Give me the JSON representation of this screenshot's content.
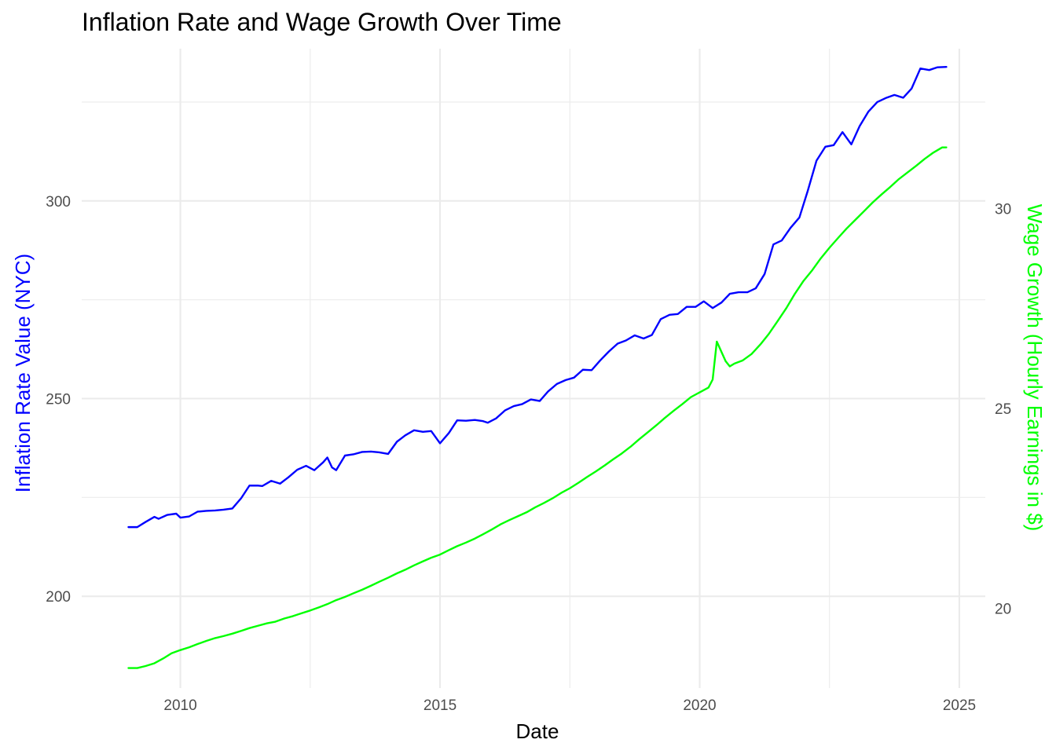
{
  "chart_data": {
    "type": "line",
    "title": "Inflation Rate and Wage Growth Over Time",
    "xlabel": "Date",
    "ylabel": "Inflation Rate Value (NYC)",
    "y2label": "Wage Growth (Hourly Earnings in $)",
    "xlim": [
      2008.1,
      2025.5
    ],
    "ylim": [
      176.8,
      338.5
    ],
    "y2lim": [
      18.0,
      34.0
    ],
    "x_ticks": [
      2010,
      2015,
      2020,
      2025
    ],
    "x_tick_labels": [
      "2010",
      "2015",
      "2020",
      "2025"
    ],
    "y_ticks": [
      200,
      250,
      300
    ],
    "y_tick_labels": [
      "200",
      "250",
      "300"
    ],
    "y2_ticks": [
      20,
      25,
      30
    ],
    "y2_tick_labels": [
      "20",
      "25",
      "30"
    ],
    "grid": true,
    "series": [
      {
        "axis": "left",
        "color": "#0000ff",
        "x": [
          2009.0,
          2009.17,
          2009.33,
          2009.5,
          2009.58,
          2009.75,
          2009.92,
          2010.0,
          2010.17,
          2010.33,
          2010.5,
          2010.67,
          2010.83,
          2011.0,
          2011.17,
          2011.33,
          2011.5,
          2011.58,
          2011.75,
          2011.92,
          2012.08,
          2012.25,
          2012.42,
          2012.58,
          2012.75,
          2012.83,
          2012.92,
          2013.0,
          2013.17,
          2013.33,
          2013.5,
          2013.67,
          2013.83,
          2014.0,
          2014.17,
          2014.33,
          2014.5,
          2014.67,
          2014.83,
          2015.0,
          2015.17,
          2015.33,
          2015.5,
          2015.67,
          2015.83,
          2015.92,
          2016.08,
          2016.25,
          2016.42,
          2016.58,
          2016.75,
          2016.92,
          2017.08,
          2017.25,
          2017.42,
          2017.58,
          2017.75,
          2017.92,
          2018.08,
          2018.25,
          2018.42,
          2018.58,
          2018.75,
          2018.92,
          2019.08,
          2019.25,
          2019.42,
          2019.58,
          2019.75,
          2019.92,
          2020.08,
          2020.25,
          2020.42,
          2020.58,
          2020.75,
          2020.92,
          2021.08,
          2021.25,
          2021.42,
          2021.58,
          2021.75,
          2021.92,
          2022.08,
          2022.25,
          2022.42,
          2022.58,
          2022.75,
          2022.92,
          2023.08,
          2023.25,
          2023.42,
          2023.58,
          2023.75,
          2023.92,
          2024.08,
          2024.25,
          2024.42,
          2024.58,
          2024.75
        ],
        "y": [
          217.5,
          217.5,
          218.8,
          220.1,
          219.6,
          220.6,
          220.9,
          219.9,
          220.2,
          221.4,
          221.6,
          221.7,
          221.9,
          222.2,
          224.8,
          228.0,
          228.0,
          227.9,
          229.2,
          228.5,
          230.1,
          232.0,
          233.0,
          231.9,
          233.9,
          235.1,
          232.6,
          231.9,
          235.6,
          235.9,
          236.5,
          236.6,
          236.4,
          236.0,
          239.1,
          240.7,
          242.0,
          241.6,
          241.8,
          238.7,
          241.3,
          244.5,
          244.4,
          244.6,
          244.3,
          243.9,
          245.0,
          247.0,
          248.1,
          248.6,
          249.8,
          249.4,
          251.8,
          253.7,
          254.7,
          255.3,
          257.3,
          257.2,
          259.6,
          261.9,
          263.9,
          264.7,
          266.0,
          265.2,
          266.1,
          270.1,
          271.2,
          271.4,
          273.2,
          273.2,
          274.6,
          272.9,
          274.3,
          276.5,
          276.9,
          276.9,
          277.9,
          281.5,
          289.0,
          290.0,
          293.2,
          295.8,
          302.5,
          310.2,
          313.7,
          314.1,
          317.4,
          314.3,
          318.9,
          322.6,
          325.0,
          326.0,
          326.8,
          326.1,
          328.4,
          333.5,
          333.1,
          333.8,
          333.9
        ]
      },
      {
        "axis": "right",
        "color": "#00ff00",
        "x": [
          2009.0,
          2009.17,
          2009.33,
          2009.5,
          2009.67,
          2009.83,
          2010.0,
          2010.17,
          2010.33,
          2010.5,
          2010.67,
          2010.83,
          2011.0,
          2011.17,
          2011.33,
          2011.5,
          2011.67,
          2011.83,
          2012.0,
          2012.17,
          2012.33,
          2012.5,
          2012.67,
          2012.83,
          2013.0,
          2013.17,
          2013.33,
          2013.5,
          2013.67,
          2013.83,
          2014.0,
          2014.17,
          2014.33,
          2014.5,
          2014.67,
          2014.83,
          2015.0,
          2015.17,
          2015.33,
          2015.5,
          2015.67,
          2015.83,
          2016.0,
          2016.17,
          2016.33,
          2016.5,
          2016.67,
          2016.83,
          2017.0,
          2017.17,
          2017.33,
          2017.5,
          2017.67,
          2017.83,
          2018.0,
          2018.17,
          2018.33,
          2018.5,
          2018.67,
          2018.83,
          2019.0,
          2019.17,
          2019.33,
          2019.5,
          2019.67,
          2019.83,
          2020.0,
          2020.17,
          2020.25,
          2020.33,
          2020.5,
          2020.58,
          2020.67,
          2020.83,
          2021.0,
          2021.17,
          2021.33,
          2021.5,
          2021.67,
          2021.83,
          2022.0,
          2022.17,
          2022.33,
          2022.5,
          2022.67,
          2022.83,
          2023.0,
          2023.17,
          2023.33,
          2023.5,
          2023.67,
          2023.83,
          2024.0,
          2024.17,
          2024.33,
          2024.5,
          2024.67,
          2024.75
        ],
        "y": [
          18.5,
          18.5,
          18.55,
          18.62,
          18.74,
          18.87,
          18.95,
          19.02,
          19.1,
          19.18,
          19.25,
          19.3,
          19.36,
          19.43,
          19.5,
          19.56,
          19.62,
          19.66,
          19.74,
          19.8,
          19.87,
          19.94,
          20.02,
          20.1,
          20.2,
          20.28,
          20.37,
          20.46,
          20.56,
          20.66,
          20.76,
          20.87,
          20.96,
          21.07,
          21.17,
          21.26,
          21.34,
          21.45,
          21.55,
          21.64,
          21.74,
          21.85,
          21.97,
          22.1,
          22.2,
          22.3,
          22.4,
          22.52,
          22.63,
          22.75,
          22.88,
          23.0,
          23.14,
          23.28,
          23.42,
          23.57,
          23.72,
          23.87,
          24.04,
          24.22,
          24.4,
          24.58,
          24.76,
          24.94,
          25.11,
          25.28,
          25.4,
          25.52,
          25.72,
          26.67,
          26.18,
          26.05,
          26.12,
          26.2,
          26.36,
          26.6,
          26.86,
          27.18,
          27.51,
          27.86,
          28.19,
          28.46,
          28.75,
          29.02,
          29.27,
          29.5,
          29.72,
          29.94,
          30.15,
          30.35,
          30.54,
          30.73,
          30.9,
          31.07,
          31.24,
          31.4,
          31.53,
          31.53
        ]
      }
    ]
  }
}
